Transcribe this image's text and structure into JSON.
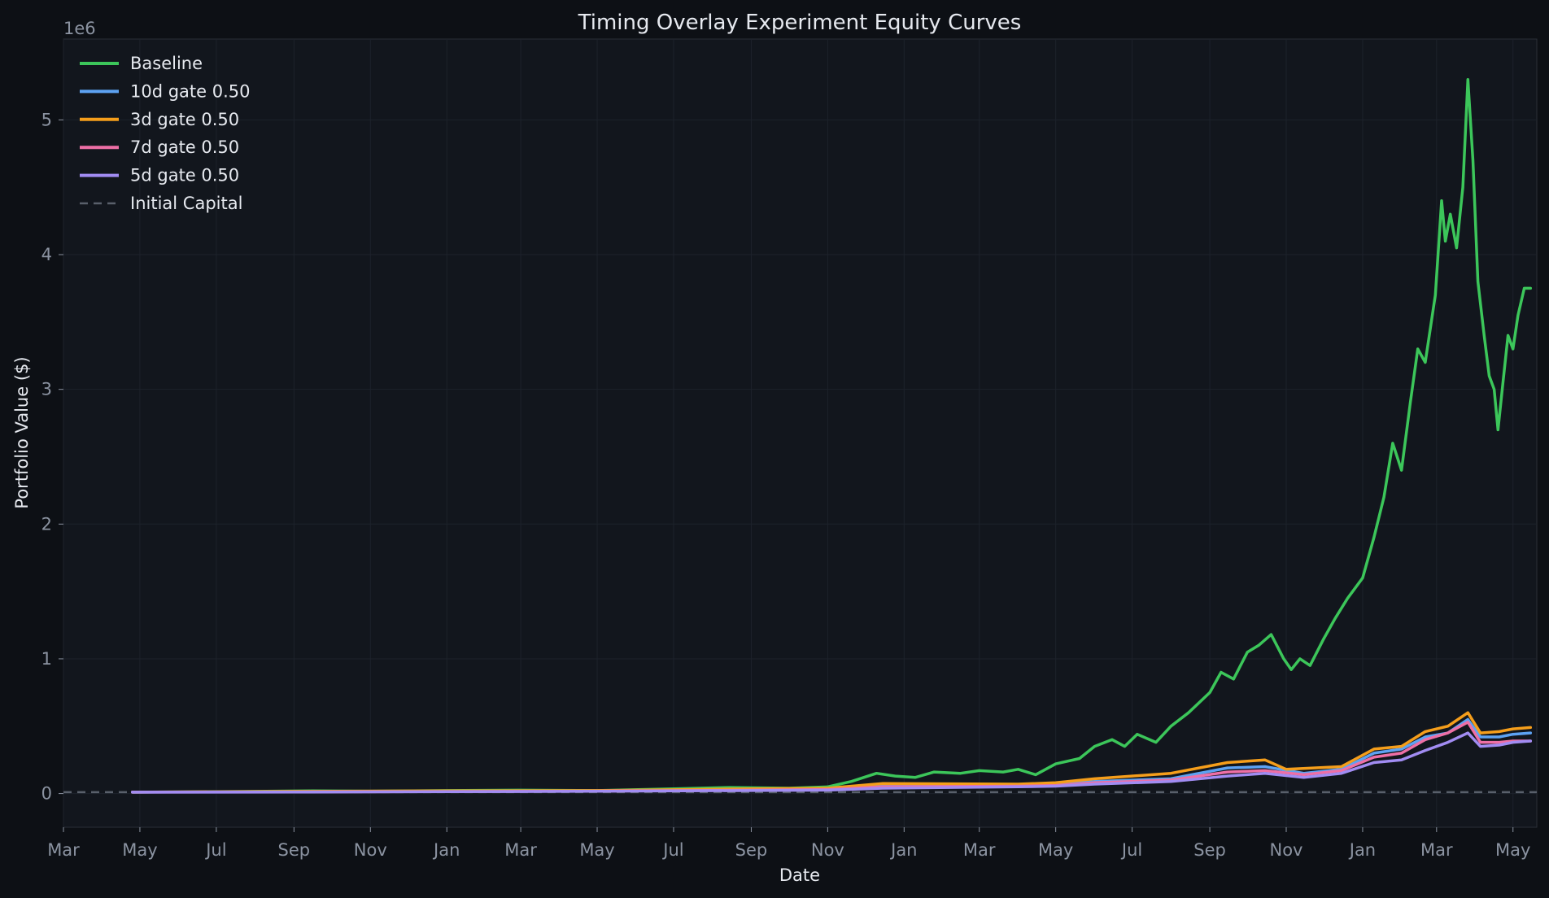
{
  "chart_data": {
    "type": "line",
    "title": "Timing Overlay Experiment Equity Curves",
    "xlabel": "Date",
    "ylabel": "Portfolio Value ($)",
    "y_offset_label": "1e6",
    "ylim": [
      -250000,
      5600000
    ],
    "xlim": [
      "2022-03-01",
      "2025-05-20"
    ],
    "yticks": [
      0,
      1000000,
      2000000,
      3000000,
      4000000,
      5000000
    ],
    "ytick_labels": [
      "0",
      "1",
      "2",
      "3",
      "4",
      "5"
    ],
    "xticks": [
      "2022-03-01",
      "2022-05-01",
      "2022-07-01",
      "2022-09-01",
      "2022-11-01",
      "2023-01-01",
      "2023-03-01",
      "2023-05-01",
      "2023-07-01",
      "2023-09-01",
      "2023-11-01",
      "2024-01-01",
      "2024-03-01",
      "2024-05-01",
      "2024-07-01",
      "2024-09-01",
      "2024-11-01",
      "2025-01-01",
      "2025-03-01",
      "2025-05-01"
    ],
    "xtick_labels": [
      "Mar",
      "May",
      "Jul",
      "Sep",
      "Nov",
      "Jan",
      "Mar",
      "May",
      "Jul",
      "Sep",
      "Nov",
      "Jan",
      "Mar",
      "May",
      "Jul",
      "Sep",
      "Nov",
      "Jan",
      "Mar",
      "May"
    ],
    "grid": true,
    "legend_position": "top-left",
    "background": "#12161d",
    "initial_capital": 10000,
    "series": [
      {
        "name": "Baseline",
        "color": "#3cc65a",
        "points": [
          [
            "2022-04-25",
            10000
          ],
          [
            "2022-06-01",
            12000
          ],
          [
            "2022-08-01",
            16000
          ],
          [
            "2022-09-15",
            20000
          ],
          [
            "2022-11-01",
            18000
          ],
          [
            "2023-01-01",
            22000
          ],
          [
            "2023-03-01",
            25000
          ],
          [
            "2023-05-01",
            22000
          ],
          [
            "2023-07-01",
            35000
          ],
          [
            "2023-08-15",
            45000
          ],
          [
            "2023-10-01",
            40000
          ],
          [
            "2023-11-01",
            50000
          ],
          [
            "2023-11-20",
            90000
          ],
          [
            "2023-12-10",
            150000
          ],
          [
            "2023-12-25",
            130000
          ],
          [
            "2024-01-10",
            120000
          ],
          [
            "2024-01-25",
            160000
          ],
          [
            "2024-02-15",
            150000
          ],
          [
            "2024-03-01",
            170000
          ],
          [
            "2024-03-20",
            160000
          ],
          [
            "2024-04-01",
            180000
          ],
          [
            "2024-04-15",
            140000
          ],
          [
            "2024-05-01",
            220000
          ],
          [
            "2024-05-20",
            260000
          ],
          [
            "2024-06-01",
            350000
          ],
          [
            "2024-06-15",
            400000
          ],
          [
            "2024-06-25",
            350000
          ],
          [
            "2024-07-05",
            440000
          ],
          [
            "2024-07-20",
            380000
          ],
          [
            "2024-08-01",
            500000
          ],
          [
            "2024-08-15",
            600000
          ],
          [
            "2024-09-01",
            750000
          ],
          [
            "2024-09-10",
            900000
          ],
          [
            "2024-09-20",
            850000
          ],
          [
            "2024-10-01",
            1050000
          ],
          [
            "2024-10-10",
            1100000
          ],
          [
            "2024-10-20",
            1180000
          ],
          [
            "2024-10-30",
            1000000
          ],
          [
            "2024-11-05",
            920000
          ],
          [
            "2024-11-12",
            1000000
          ],
          [
            "2024-11-20",
            950000
          ],
          [
            "2024-12-01",
            1150000
          ],
          [
            "2024-12-10",
            1300000
          ],
          [
            "2024-12-20",
            1450000
          ],
          [
            "2025-01-01",
            1600000
          ],
          [
            "2025-01-10",
            1900000
          ],
          [
            "2025-01-18",
            2200000
          ],
          [
            "2025-01-25",
            2600000
          ],
          [
            "2025-02-01",
            2400000
          ],
          [
            "2025-02-08",
            2900000
          ],
          [
            "2025-02-14",
            3300000
          ],
          [
            "2025-02-20",
            3200000
          ],
          [
            "2025-02-28",
            3700000
          ],
          [
            "2025-03-05",
            4400000
          ],
          [
            "2025-03-08",
            4100000
          ],
          [
            "2025-03-12",
            4300000
          ],
          [
            "2025-03-17",
            4050000
          ],
          [
            "2025-03-22",
            4500000
          ],
          [
            "2025-03-26",
            5300000
          ],
          [
            "2025-03-30",
            4700000
          ],
          [
            "2025-04-03",
            3800000
          ],
          [
            "2025-04-08",
            3400000
          ],
          [
            "2025-04-12",
            3100000
          ],
          [
            "2025-04-16",
            3000000
          ],
          [
            "2025-04-19",
            2700000
          ],
          [
            "2025-04-23",
            3050000
          ],
          [
            "2025-04-27",
            3400000
          ],
          [
            "2025-05-01",
            3300000
          ],
          [
            "2025-05-05",
            3550000
          ],
          [
            "2025-05-10",
            3750000
          ],
          [
            "2025-05-15",
            3750000
          ]
        ]
      },
      {
        "name": "10d gate 0.50",
        "color": "#5da2f2",
        "points": [
          [
            "2022-04-25",
            10000
          ],
          [
            "2022-09-01",
            14000
          ],
          [
            "2023-01-01",
            18000
          ],
          [
            "2023-05-01",
            20000
          ],
          [
            "2023-09-01",
            30000
          ],
          [
            "2023-11-01",
            35000
          ],
          [
            "2023-12-15",
            60000
          ],
          [
            "2024-04-01",
            60000
          ],
          [
            "2024-05-01",
            65000
          ],
          [
            "2024-06-01",
            90000
          ],
          [
            "2024-08-01",
            110000
          ],
          [
            "2024-09-15",
            190000
          ],
          [
            "2024-10-15",
            200000
          ],
          [
            "2024-11-15",
            150000
          ],
          [
            "2024-12-15",
            180000
          ],
          [
            "2025-01-10",
            300000
          ],
          [
            "2025-02-01",
            330000
          ],
          [
            "2025-02-20",
            420000
          ],
          [
            "2025-03-10",
            450000
          ],
          [
            "2025-03-26",
            550000
          ],
          [
            "2025-04-05",
            420000
          ],
          [
            "2025-04-20",
            420000
          ],
          [
            "2025-05-01",
            440000
          ],
          [
            "2025-05-15",
            450000
          ]
        ]
      },
      {
        "name": "3d gate 0.50",
        "color": "#f59e1b",
        "points": [
          [
            "2022-04-25",
            10000
          ],
          [
            "2022-09-01",
            16000
          ],
          [
            "2023-01-01",
            20000
          ],
          [
            "2023-05-01",
            22000
          ],
          [
            "2023-09-01",
            35000
          ],
          [
            "2023-11-01",
            40000
          ],
          [
            "2023-12-15",
            75000
          ],
          [
            "2024-04-01",
            70000
          ],
          [
            "2024-05-01",
            80000
          ],
          [
            "2024-06-01",
            110000
          ],
          [
            "2024-08-01",
            150000
          ],
          [
            "2024-09-15",
            230000
          ],
          [
            "2024-10-15",
            250000
          ],
          [
            "2024-11-01",
            180000
          ],
          [
            "2024-12-15",
            200000
          ],
          [
            "2025-01-10",
            330000
          ],
          [
            "2025-02-01",
            350000
          ],
          [
            "2025-02-20",
            460000
          ],
          [
            "2025-03-10",
            500000
          ],
          [
            "2025-03-26",
            600000
          ],
          [
            "2025-04-05",
            450000
          ],
          [
            "2025-04-20",
            460000
          ],
          [
            "2025-05-01",
            480000
          ],
          [
            "2025-05-15",
            490000
          ]
        ]
      },
      {
        "name": "7d gate 0.50",
        "color": "#ee6fa6",
        "points": [
          [
            "2022-04-25",
            10000
          ],
          [
            "2022-09-01",
            12000
          ],
          [
            "2023-01-01",
            15000
          ],
          [
            "2023-05-01",
            18000
          ],
          [
            "2023-09-01",
            25000
          ],
          [
            "2023-11-01",
            30000
          ],
          [
            "2023-12-15",
            50000
          ],
          [
            "2024-04-01",
            55000
          ],
          [
            "2024-05-01",
            60000
          ],
          [
            "2024-06-01",
            80000
          ],
          [
            "2024-08-01",
            100000
          ],
          [
            "2024-09-15",
            160000
          ],
          [
            "2024-10-15",
            170000
          ],
          [
            "2024-11-15",
            140000
          ],
          [
            "2024-12-15",
            170000
          ],
          [
            "2025-01-10",
            270000
          ],
          [
            "2025-02-01",
            300000
          ],
          [
            "2025-02-20",
            400000
          ],
          [
            "2025-03-10",
            450000
          ],
          [
            "2025-03-26",
            530000
          ],
          [
            "2025-04-05",
            380000
          ],
          [
            "2025-04-20",
            380000
          ],
          [
            "2025-05-01",
            390000
          ],
          [
            "2025-05-15",
            390000
          ]
        ]
      },
      {
        "name": "5d gate 0.50",
        "color": "#a18cf2",
        "points": [
          [
            "2022-04-25",
            10000
          ],
          [
            "2022-09-01",
            11000
          ],
          [
            "2023-01-01",
            14000
          ],
          [
            "2023-05-01",
            17000
          ],
          [
            "2023-09-01",
            22000
          ],
          [
            "2023-11-01",
            25000
          ],
          [
            "2023-12-15",
            40000
          ],
          [
            "2024-04-01",
            50000
          ],
          [
            "2024-05-01",
            55000
          ],
          [
            "2024-06-01",
            70000
          ],
          [
            "2024-08-01",
            90000
          ],
          [
            "2024-09-15",
            130000
          ],
          [
            "2024-10-15",
            150000
          ],
          [
            "2024-11-15",
            120000
          ],
          [
            "2024-12-15",
            150000
          ],
          [
            "2025-01-10",
            230000
          ],
          [
            "2025-02-01",
            250000
          ],
          [
            "2025-02-20",
            320000
          ],
          [
            "2025-03-10",
            380000
          ],
          [
            "2025-03-26",
            450000
          ],
          [
            "2025-04-05",
            350000
          ],
          [
            "2025-04-20",
            360000
          ],
          [
            "2025-05-01",
            380000
          ],
          [
            "2025-05-15",
            390000
          ]
        ]
      }
    ],
    "reference_line": {
      "name": "Initial Capital",
      "color": "#59606b",
      "value": 10000
    }
  }
}
